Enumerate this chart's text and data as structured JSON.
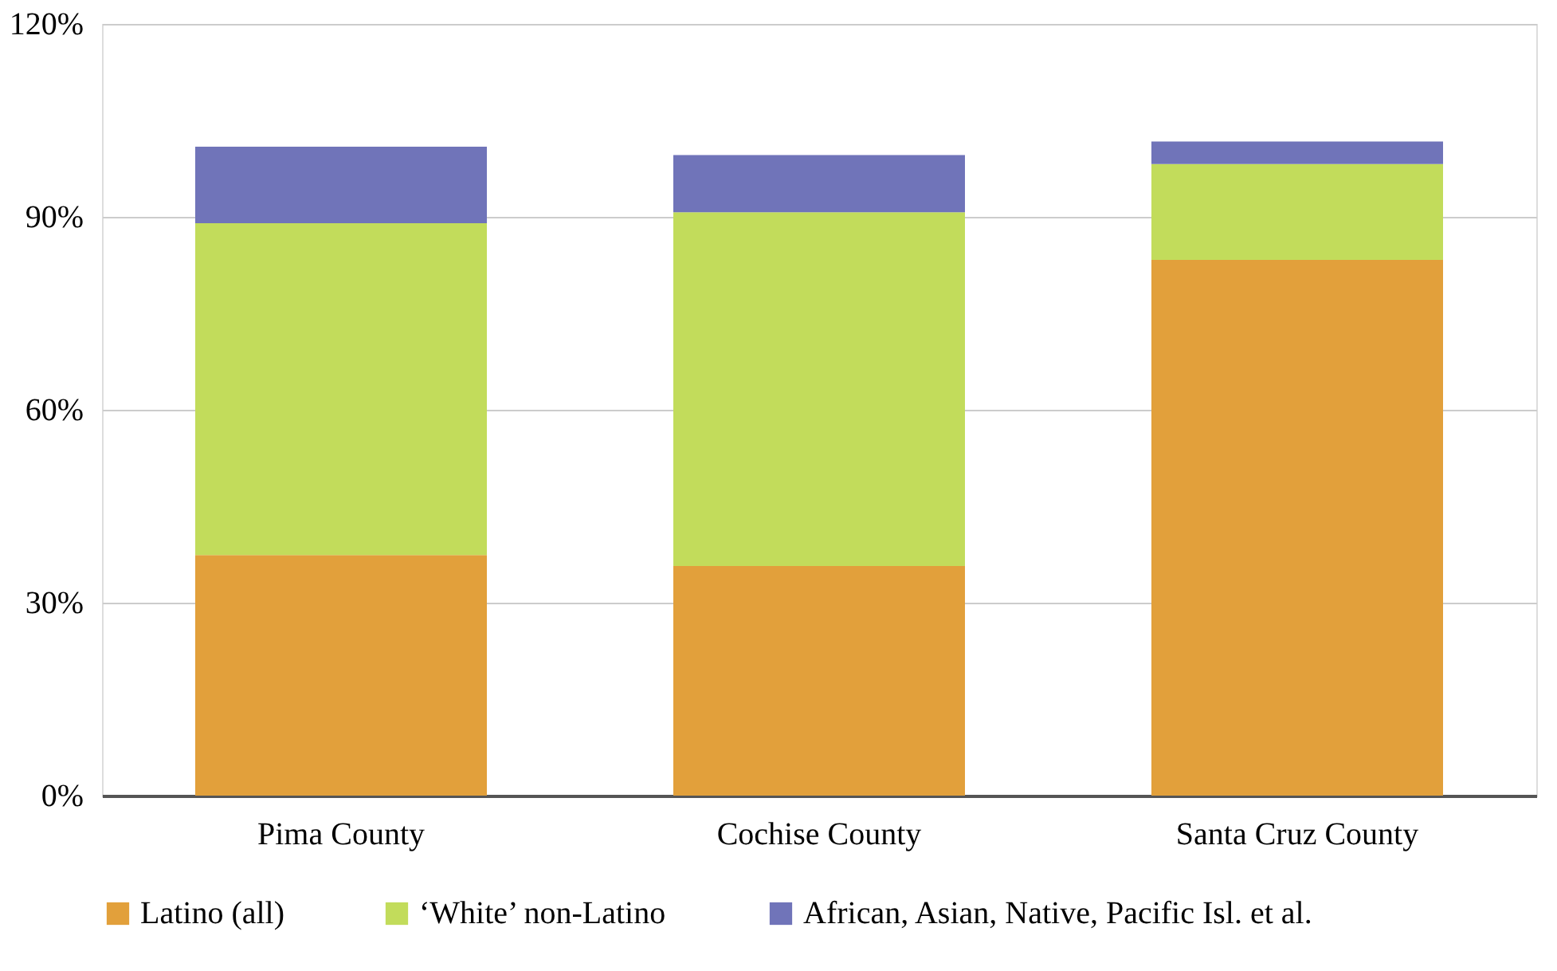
{
  "chart_data": {
    "type": "bar",
    "stacked": true,
    "categories": [
      "Pima County",
      "Cochise County",
      "Santa Cruz County"
    ],
    "series": [
      {
        "name": "Latino (all)",
        "color": "#e2a03b",
        "values": [
          37.4,
          35.7,
          83.3
        ]
      },
      {
        "name": "‘White’ non-Latino",
        "color": "#c2dc5b",
        "values": [
          51.6,
          55.0,
          14.9
        ]
      },
      {
        "name": "African, Asian, Native, Pacific Isl. et al.",
        "color": "#7074b9",
        "values": [
          11.9,
          8.9,
          3.5
        ]
      }
    ],
    "ylim": [
      0,
      120
    ],
    "yticks": [
      {
        "value": 0,
        "label": "0%"
      },
      {
        "value": 30,
        "label": "30%"
      },
      {
        "value": 60,
        "label": "60%"
      },
      {
        "value": 90,
        "label": "90%"
      },
      {
        "value": 120,
        "label": "120%"
      }
    ],
    "grid": "y",
    "legend": "bottom"
  }
}
